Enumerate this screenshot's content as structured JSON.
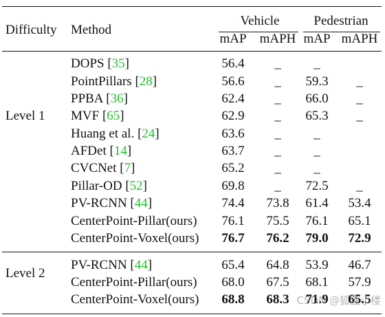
{
  "headers": {
    "difficulty": "Difficulty",
    "method": "Method",
    "group1": "Vehicle",
    "group2": "Pedestrian",
    "map": "mAP",
    "maph": "mAPH"
  },
  "levels": [
    {
      "label": "Level 1",
      "rows": [
        {
          "method": "DOPS",
          "cite": "35",
          "v_map": "56.4",
          "v_maph": "_",
          "p_map": "_",
          "p_maph": "",
          "bold": false
        },
        {
          "method": "PointPillars",
          "cite": "28",
          "v_map": "56.6",
          "v_maph": "_",
          "p_map": "59.3",
          "p_maph": "_",
          "bold": false
        },
        {
          "method": "PPBA",
          "cite": "36",
          "v_map": "62.4",
          "v_maph": "_",
          "p_map": "66.0",
          "p_maph": "_",
          "bold": false
        },
        {
          "method": "MVF",
          "cite": "65",
          "v_map": "62.9",
          "v_maph": "_",
          "p_map": "65.3",
          "p_maph": "_",
          "bold": false
        },
        {
          "method": "Huang et al.",
          "cite": "24",
          "v_map": "63.6",
          "v_maph": "_",
          "p_map": "_",
          "p_maph": "",
          "bold": false
        },
        {
          "method": "AFDet",
          "cite": "14",
          "v_map": "63.7",
          "v_maph": "_",
          "p_map": "_",
          "p_maph": "",
          "bold": false
        },
        {
          "method": "CVCNet",
          "cite": "7",
          "v_map": "65.2",
          "v_maph": "_",
          "p_map": "_",
          "p_maph": "",
          "bold": false
        },
        {
          "method": "Pillar-OD",
          "cite": "52",
          "v_map": "69.8",
          "v_maph": "_",
          "p_map": "72.5",
          "p_maph": "_",
          "bold": false
        },
        {
          "method": "PV-RCNN",
          "cite": "44",
          "v_map": "74.4",
          "v_maph": "73.8",
          "p_map": "61.4",
          "p_maph": "53.4",
          "bold": false
        },
        {
          "method": "CenterPoint-Pillar(ours)",
          "cite": "",
          "v_map": "76.1",
          "v_maph": "75.5",
          "p_map": "76.1",
          "p_maph": "65.1",
          "bold": false
        },
        {
          "method": "CenterPoint-Voxel(ours)",
          "cite": "",
          "v_map": "76.7",
          "v_maph": "76.2",
          "p_map": "79.0",
          "p_maph": "72.9",
          "bold": true
        }
      ]
    },
    {
      "label": "Level 2",
      "rows": [
        {
          "method": "PV-RCNN",
          "cite": "44",
          "v_map": "65.4",
          "v_maph": "64.8",
          "p_map": "53.9",
          "p_maph": "46.7",
          "bold": false
        },
        {
          "method": "CenterPoint-Pillar(ours)",
          "cite": "",
          "v_map": "68.0",
          "v_maph": "67.5",
          "p_map": "68.1",
          "p_maph": "57.9",
          "bold": false
        },
        {
          "method": "CenterPoint-Voxel(ours)",
          "cite": "",
          "v_map": "68.8",
          "v_maph": "68.3",
          "p_map": "71.9",
          "p_maph": "65.5",
          "bold": true
        }
      ]
    }
  ],
  "watermark": "CSDN @狐狸小楼"
}
